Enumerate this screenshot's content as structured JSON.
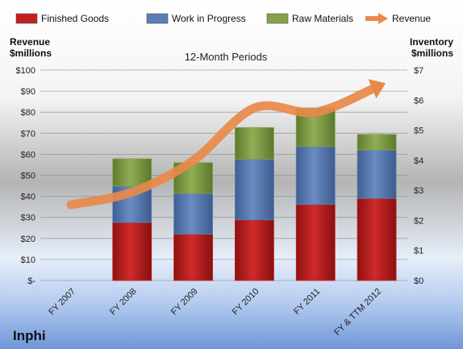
{
  "chart_data": {
    "type": "bar",
    "subtitle": "12-Month Periods",
    "company": "Inphi",
    "left_axis": {
      "label_line1": "Revenue",
      "label_line2": "$millions",
      "min": 0,
      "max": 100,
      "step": 10,
      "tick_labels": [
        "$-",
        "$10",
        "$20",
        "$30",
        "$40",
        "$50",
        "$60",
        "$70",
        "$80",
        "$90",
        "$100"
      ]
    },
    "right_axis": {
      "label_line1": "Inventory",
      "label_line2": "$millions",
      "min": 0,
      "max": 7,
      "step": 1,
      "tick_labels": [
        "$0",
        "$1",
        "$2",
        "$3",
        "$4",
        "$5",
        "$6",
        "$7"
      ]
    },
    "categories": [
      "FY 2007",
      "FY 2008",
      "FY 2009",
      "FY 2010",
      "FY 2011",
      "FY & TTM 2012"
    ],
    "series": [
      {
        "name": "Finished Goods",
        "axis": "right",
        "color": "#c41f1f",
        "values": [
          0,
          1.93,
          1.54,
          2.02,
          2.53,
          2.73
        ]
      },
      {
        "name": "Work in Progress",
        "axis": "right",
        "color": "#5b7fb5",
        "values": [
          0,
          1.21,
          1.36,
          2.02,
          1.93,
          1.61
        ]
      },
      {
        "name": "Raw Materials",
        "axis": "right",
        "color": "#84a24a",
        "values": [
          0,
          0.91,
          1.02,
          1.05,
          1.28,
          0.52
        ]
      },
      {
        "name": "Revenue",
        "axis": "left",
        "type": "line",
        "color": "#e8894a",
        "values": [
          36,
          42,
          57,
          82,
          80,
          92
        ]
      }
    ],
    "legend_position": "top",
    "grid": true
  }
}
